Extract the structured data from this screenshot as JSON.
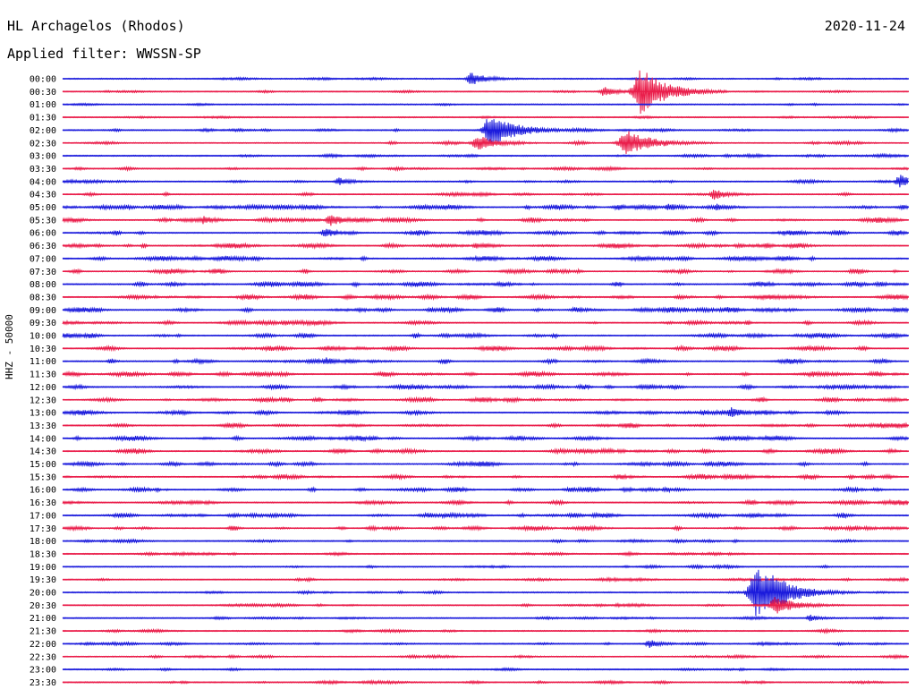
{
  "header": {
    "station": "HL Archagelos (Rhodos)",
    "date": "2020-11-24",
    "filter": "Applied filter: WWSSN-SP"
  },
  "chart_data": {
    "type": "line",
    "title": "HL Archagelos (Rhodos)",
    "ylabel": "HHZ - 50000",
    "colors": {
      "even_rows": "#1a1adc",
      "odd_rows": "#ea1e4b"
    },
    "row_labels": [
      "00:00",
      "00:30",
      "01:00",
      "01:30",
      "02:00",
      "02:30",
      "03:00",
      "03:30",
      "04:00",
      "04:30",
      "05:00",
      "05:30",
      "06:00",
      "06:30",
      "07:00",
      "07:30",
      "08:00",
      "08:30",
      "09:00",
      "09:30",
      "10:00",
      "10:30",
      "11:00",
      "11:30",
      "12:00",
      "12:30",
      "13:00",
      "13:30",
      "14:00",
      "14:30",
      "15:00",
      "15:30",
      "16:00",
      "16:30",
      "17:00",
      "17:30",
      "18:00",
      "18:30",
      "19:00",
      "19:30",
      "20:00",
      "20:30",
      "21:00",
      "21:30",
      "22:00",
      "22:30",
      "23:00",
      "23:30"
    ],
    "minutes_per_row": 30,
    "events": [
      {
        "row": 0,
        "minute": 14.5,
        "amplitude": 1.0
      },
      {
        "row": 1,
        "minute": 19.2,
        "amplitude": 0.7
      },
      {
        "row": 1,
        "minute": 20.5,
        "amplitude": 3.8
      },
      {
        "row": 4,
        "minute": 15.2,
        "amplitude": 2.6
      },
      {
        "row": 5,
        "minute": 14.7,
        "amplitude": 1.2
      },
      {
        "row": 5,
        "minute": 20.0,
        "amplitude": 2.0
      },
      {
        "row": 8,
        "minute": 9.8,
        "amplitude": 0.6
      },
      {
        "row": 8,
        "minute": 29.7,
        "amplitude": 1.0
      },
      {
        "row": 9,
        "minute": 23.1,
        "amplitude": 0.8
      },
      {
        "row": 10,
        "minute": 21.5,
        "amplitude": 0.6
      },
      {
        "row": 10,
        "minute": 23.2,
        "amplitude": 0.6
      },
      {
        "row": 11,
        "minute": 9.5,
        "amplitude": 0.9
      },
      {
        "row": 11,
        "minute": 5.0,
        "amplitude": 0.6
      },
      {
        "row": 12,
        "minute": 9.3,
        "amplitude": 0.7
      },
      {
        "row": 22,
        "minute": 9.3,
        "amplitude": 0.6
      },
      {
        "row": 26,
        "minute": 23.7,
        "amplitude": 0.8
      },
      {
        "row": 40,
        "minute": 24.6,
        "amplitude": 4.0
      },
      {
        "row": 40,
        "minute": 25.2,
        "amplitude": 2.8
      },
      {
        "row": 41,
        "minute": 25.3,
        "amplitude": 1.4
      },
      {
        "row": 42,
        "minute": 26.5,
        "amplitude": 0.5
      },
      {
        "row": 44,
        "minute": 20.8,
        "amplitude": 0.6
      }
    ]
  }
}
